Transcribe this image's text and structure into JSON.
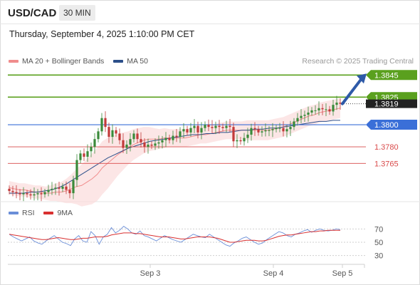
{
  "header": {
    "symbol": "USD/CAD",
    "timeframe": "30 MIN",
    "datetime": "Thursday, September 4, 2025 1:10:00 PM CET"
  },
  "legend": {
    "items": [
      {
        "label": "MA 20 + Bollinger Bands",
        "color": "#f08c8c"
      },
      {
        "label": "MA 50",
        "color": "#2c4f8a"
      }
    ],
    "credit": "Research © 2025 Trading Central"
  },
  "rsi_legend": {
    "items": [
      {
        "label": "RSI",
        "color": "#6a8ed8"
      },
      {
        "label": "9MA",
        "color": "#d93030"
      }
    ]
  },
  "colors": {
    "up_candle": "#3a8a3a",
    "down_candle": "#c23a3a",
    "resistance": "#5aa01e",
    "pivot": "#3a6fd8",
    "support": "#d94a4a",
    "arrow": "#2e5aa8",
    "price_tag": "#222222"
  },
  "chart_data": {
    "type": "candlestick",
    "symbol": "USD/CAD",
    "x_ticks": [
      "Sep 3",
      "Sep 4",
      "Sep 5"
    ],
    "price_range": [
      1.3731,
      1.3851
    ],
    "levels": [
      {
        "value": 1.3845,
        "label": "1.3845",
        "kind": "resistance"
      },
      {
        "value": 1.3825,
        "label": "1.3825",
        "kind": "resistance"
      },
      {
        "value": 1.38,
        "label": "1.3800",
        "kind": "pivot"
      },
      {
        "value": 1.378,
        "label": "1.3780",
        "kind": "support"
      },
      {
        "value": 1.3765,
        "label": "1.3765",
        "kind": "support"
      }
    ],
    "last_price": {
      "value": 1.3819,
      "label": "1.3819"
    },
    "close_path": [
      1.374,
      1.3739,
      1.3738,
      1.3737,
      1.3738,
      1.3737,
      1.3736,
      1.3737,
      1.3738,
      1.3737,
      1.3739,
      1.3741,
      1.3742,
      1.3743,
      1.3742,
      1.3744,
      1.3741,
      1.3738,
      1.375,
      1.3768,
      1.3774,
      1.3771,
      1.3776,
      1.378,
      1.3787,
      1.3794,
      1.3806,
      1.3798,
      1.3789,
      1.3795,
      1.3792,
      1.3786,
      1.3779,
      1.3782,
      1.3787,
      1.3792,
      1.3787,
      1.3784,
      1.378,
      1.3782,
      1.3781,
      1.3783,
      1.3784,
      1.3786,
      1.3788,
      1.3786,
      1.379,
      1.3789,
      1.3794,
      1.3796,
      1.3793,
      1.3797,
      1.3799,
      1.3793,
      1.3797,
      1.38,
      1.3798,
      1.3797,
      1.3799,
      1.3798,
      1.3797,
      1.3799,
      1.3798,
      1.3785,
      1.3786,
      1.3785,
      1.3788,
      1.3791,
      1.3797,
      1.3796,
      1.3793,
      1.3794,
      1.3795,
      1.3795,
      1.3796,
      1.3797,
      1.3797,
      1.3794,
      1.3796,
      1.3798,
      1.3803,
      1.3806,
      1.3808,
      1.3809,
      1.3811,
      1.3813,
      1.3813,
      1.3815,
      1.3814,
      1.3814,
      1.3812,
      1.3818,
      1.382,
      1.3819
    ],
    "ma20_path": [
      1.3743,
      1.3742,
      1.3741,
      1.3741,
      1.374,
      1.3739,
      1.3739,
      1.3738,
      1.3738,
      1.3739,
      1.3739,
      1.374,
      1.3742,
      1.3744,
      1.3745,
      1.3748,
      1.3751,
      1.3755,
      1.3761,
      1.3765,
      1.3769,
      1.3773,
      1.3776,
      1.3779,
      1.3782,
      1.3784,
      1.3786,
      1.3787,
      1.3787,
      1.3787,
      1.3788,
      1.3788,
      1.3788,
      1.3788,
      1.3788,
      1.3789,
      1.379,
      1.3791,
      1.3791,
      1.3792,
      1.3793,
      1.3794,
      1.3795,
      1.3795,
      1.3795,
      1.3795,
      1.3795,
      1.3795,
      1.3795,
      1.3795,
      1.3795,
      1.3796,
      1.3797,
      1.3798,
      1.38,
      1.3802,
      1.3804,
      1.3806,
      1.3808,
      1.3809,
      1.3811,
      1.3812,
      1.3813,
      1.3814,
      1.3815
    ],
    "ma50_path": [
      1.3738,
      1.3738,
      1.3738,
      1.3739,
      1.3739,
      1.374,
      1.3741,
      1.3743,
      1.3746,
      1.375,
      1.3754,
      1.3758,
      1.3762,
      1.3766,
      1.377,
      1.3773,
      1.3776,
      1.3779,
      1.3781,
      1.3783,
      1.3785,
      1.3786,
      1.3787,
      1.3788,
      1.3789,
      1.379,
      1.3791,
      1.3791,
      1.3792,
      1.3792,
      1.3793,
      1.3793,
      1.3794,
      1.3795,
      1.3795,
      1.3796,
      1.3796,
      1.3797,
      1.3797,
      1.3798,
      1.3799,
      1.38,
      1.3801,
      1.3802,
      1.3803,
      1.3803,
      1.3804,
      1.3804
    ],
    "bollinger_half_width": [
      0.0006,
      0.0006,
      0.0006,
      0.0006,
      0.0006,
      0.0006,
      0.0006,
      0.0006,
      0.0007,
      0.0008,
      0.0009,
      0.0011,
      0.0013,
      0.0016,
      0.0019,
      0.0021,
      0.0023,
      0.0024,
      0.0024,
      0.0023,
      0.0021,
      0.0019,
      0.0017,
      0.0015,
      0.0014,
      0.0013,
      0.0012,
      0.0011,
      0.001,
      0.0009,
      0.0009,
      0.0008,
      0.0008,
      0.0008,
      0.0008,
      0.0008,
      0.0008,
      0.0008,
      0.0008,
      0.0008,
      0.0008,
      0.0008,
      0.0008,
      0.0008,
      0.0008,
      0.0008,
      0.0009,
      0.0009,
      0.0009,
      0.0009,
      0.0009,
      0.0009,
      0.0009,
      0.0009,
      0.0009,
      0.0009,
      0.0009,
      0.0009,
      0.0009,
      0.0009,
      0.0009,
      0.0009,
      0.0009,
      0.0009,
      0.0009
    ],
    "forecast_arrow": {
      "from": 1.3819,
      "to": 1.3845
    },
    "rsi": {
      "ticks": [
        70,
        50,
        30
      ],
      "range": [
        20,
        80
      ],
      "rsi_path": [
        62,
        58,
        55,
        52,
        55,
        58,
        52,
        49,
        47,
        52,
        56,
        60,
        55,
        50,
        48,
        45,
        55,
        60,
        52,
        50,
        66,
        60,
        47,
        58,
        62,
        72,
        64,
        68,
        74,
        70,
        64,
        62,
        67,
        60,
        58,
        55,
        52,
        56,
        60,
        57,
        54,
        52,
        50,
        54,
        58,
        62,
        60,
        58,
        57,
        62,
        58,
        54,
        50,
        46,
        44,
        49,
        52,
        56,
        58,
        54,
        50,
        47,
        49,
        54,
        58,
        62,
        66,
        64,
        60,
        58,
        62,
        64,
        67,
        69,
        65,
        68,
        70,
        68,
        67,
        68,
        70,
        69
      ],
      "ma9_path": [
        62,
        61,
        60,
        59,
        58,
        57,
        56,
        55,
        54,
        54,
        55,
        56,
        57,
        56,
        55,
        54,
        54,
        55,
        56,
        56,
        57,
        58,
        58,
        58,
        59,
        61,
        62,
        63,
        64,
        64,
        64,
        63,
        63,
        62,
        61,
        60,
        59,
        58,
        58,
        58,
        57,
        56,
        55,
        55,
        56,
        57,
        58,
        58,
        58,
        58,
        57,
        56,
        54,
        52,
        50,
        50,
        51,
        52,
        53,
        53,
        53,
        52,
        52,
        53,
        55,
        57,
        59,
        60,
        61,
        61,
        62,
        63,
        64,
        65,
        66,
        66,
        67,
        67,
        68,
        68,
        68,
        68
      ]
    }
  }
}
